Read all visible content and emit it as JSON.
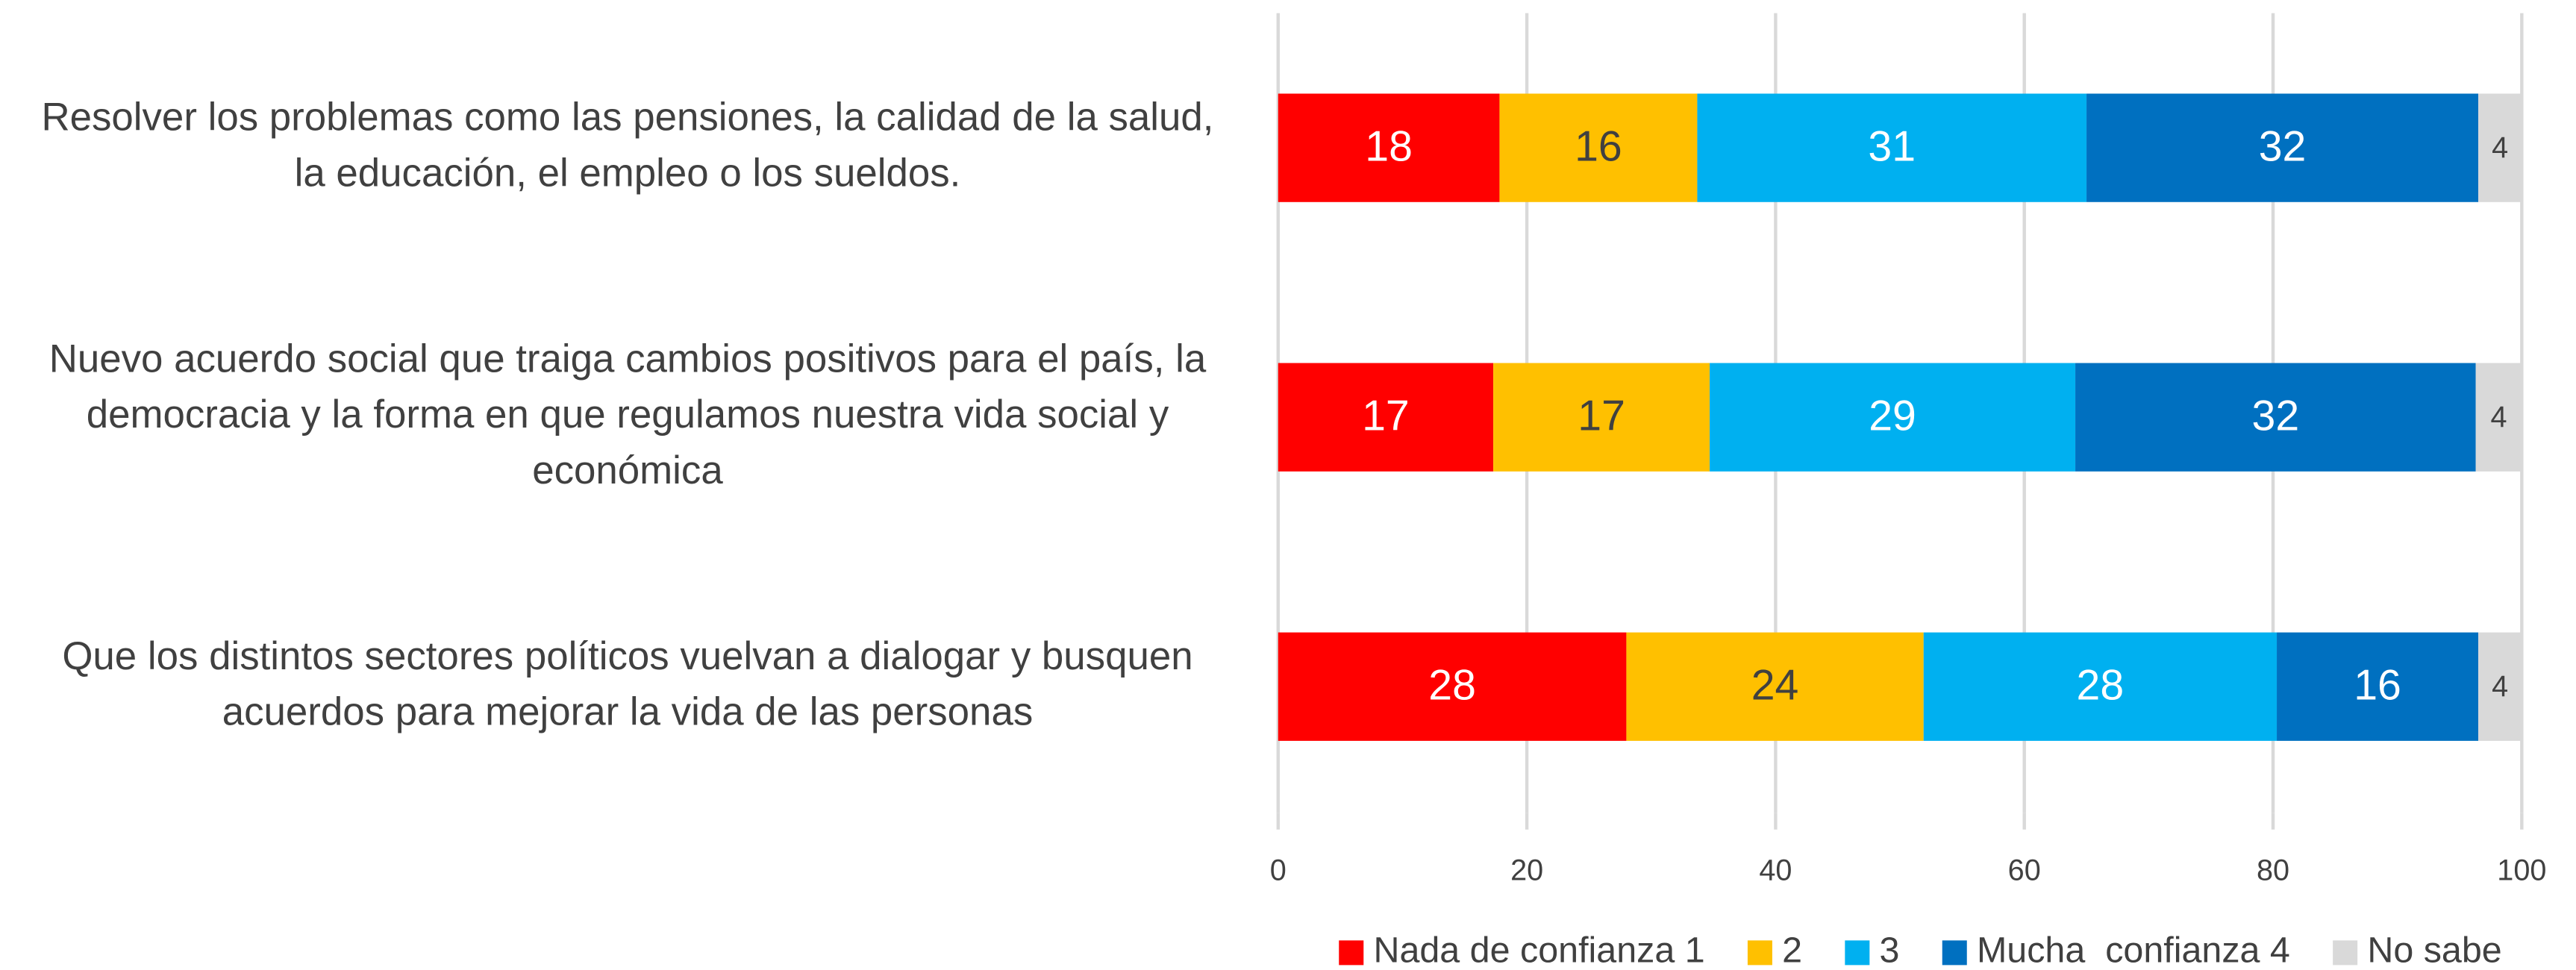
{
  "chart_data": {
    "type": "stacked-bar-horizontal",
    "categories": [
      [
        "Resolver los problemas como las pensiones, la calidad de la salud,",
        "la educación, el empleo o los sueldos."
      ],
      [
        "Nuevo acuerdo social que traiga cambios positivos para el país, la",
        "democracia y la forma en que regulamos nuestra vida social y",
        "económica"
      ],
      [
        "Que los distintos sectores políticos vuelvan a dialogar y busquen",
        "acuerdos para mejorar la vida de las personas"
      ]
    ],
    "series": [
      {
        "name": "Nada de confianza 1",
        "color": "#ff0000",
        "label_color": "#ffffff",
        "values": [
          17.8,
          17.3,
          28.0
        ],
        "value_labels": [
          "18",
          "17",
          "28"
        ]
      },
      {
        "name": "2",
        "color": "#ffc000",
        "label_color": "#404040",
        "values": [
          15.9,
          17.4,
          23.9
        ],
        "value_labels": [
          "16",
          "17",
          "24"
        ]
      },
      {
        "name": "3",
        "color": "#00b0f0",
        "label_color": "#ffffff",
        "values": [
          31.3,
          29.4,
          28.4
        ],
        "value_labels": [
          "31",
          "29",
          "28"
        ]
      },
      {
        "name": "Mucha  confianza 4",
        "color": "#0070c0",
        "label_color": "#ffffff",
        "values": [
          31.5,
          32.2,
          16.2
        ],
        "value_labels": [
          "32",
          "32",
          "16"
        ]
      },
      {
        "name": "No sabe",
        "color": "#d9d9d9",
        "label_color": "#404040",
        "values": [
          3.5,
          3.7,
          3.5
        ],
        "value_labels": [
          "4",
          "4",
          "4"
        ]
      }
    ],
    "xlim": [
      0,
      100
    ],
    "xticks": [
      0,
      20,
      40,
      60,
      80,
      100
    ],
    "grid": true,
    "legend": "bottom"
  }
}
